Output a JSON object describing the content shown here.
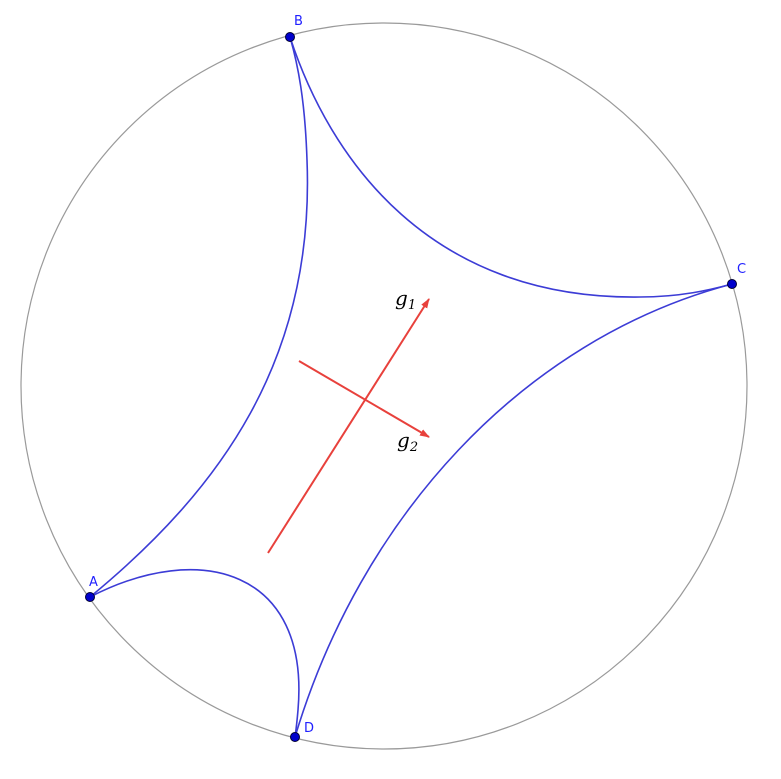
{
  "colors": {
    "boundary": "#9a9a9a",
    "geodesic": "#3c3cd6",
    "point": "#0000cc",
    "point_label": "#2020ff",
    "vector": "#e8413c"
  },
  "points": [
    {
      "id": "A",
      "label": "A"
    },
    {
      "id": "B",
      "label": "B"
    },
    {
      "id": "C",
      "label": "C"
    },
    {
      "id": "D",
      "label": "D"
    }
  ],
  "vectors": [
    {
      "id": "g1",
      "label": "g",
      "subscript": "1"
    },
    {
      "id": "g2",
      "label": "g",
      "subscript": "2"
    }
  ]
}
